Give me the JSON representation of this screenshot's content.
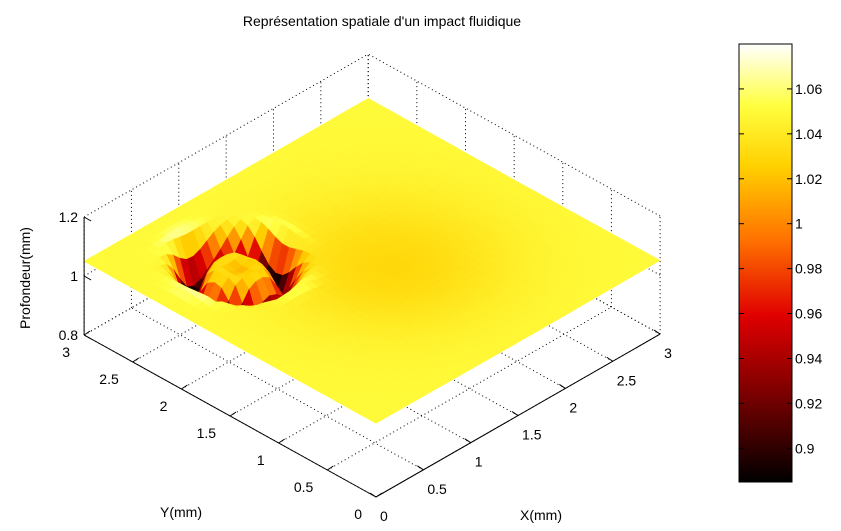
{
  "chart_data": {
    "type": "surface",
    "title": "Représentation spatiale d'un impact fluidique",
    "xlabel": "X(mm)",
    "ylabel": "Y(mm)",
    "zlabel": "Profondeur(mm)",
    "xlim": [
      0,
      3
    ],
    "ylim": [
      0,
      3
    ],
    "zlim": [
      0.8,
      1.2
    ],
    "x_ticks": [
      "0",
      "0.5",
      "1",
      "1.5",
      "2",
      "2.5",
      "3"
    ],
    "y_ticks": [
      "0",
      "0.5",
      "1",
      "1.5",
      "2",
      "2.5",
      "3"
    ],
    "z_ticks": [
      "0.8",
      "1",
      "1.2"
    ],
    "grid": true,
    "surface": {
      "baseline_depth": 1.05,
      "crater": {
        "center_x": 0.8,
        "center_y": 2.2,
        "rim_radius": 0.35,
        "rim_min_depth": 0.89,
        "center_depth": 1.02,
        "outer_rim_max_depth": 1.08
      },
      "shallow_region": {
        "center_x": 1.6,
        "center_y": 1.4,
        "depth": 1.03
      }
    },
    "colorbar": {
      "colormap": "hot",
      "range": [
        0.885,
        1.08
      ],
      "ticks": [
        "0.9",
        "0.92",
        "0.94",
        "0.96",
        "0.98",
        "1",
        "1.02",
        "1.04",
        "1.06"
      ],
      "tick_values": [
        0.9,
        0.92,
        0.94,
        0.96,
        0.98,
        1.0,
        1.02,
        1.04,
        1.06
      ]
    }
  }
}
